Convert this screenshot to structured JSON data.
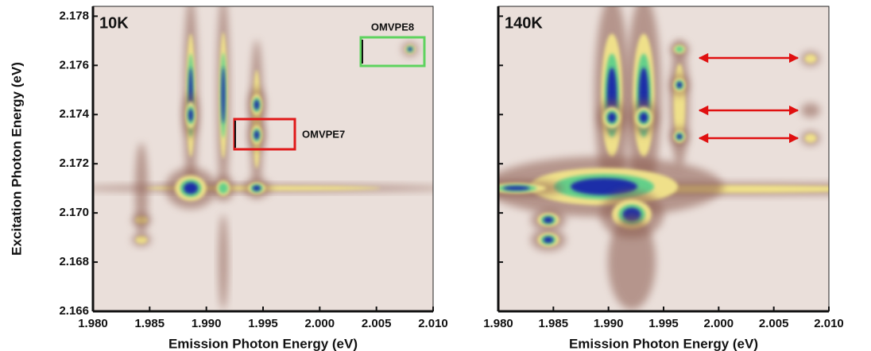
{
  "chart_data": [
    {
      "type": "heatmap",
      "label": "10K",
      "xlabel": "Emission Photon Energy (eV)",
      "ylabel": "Excitation Photon Energy (eV)",
      "xlim": [
        1.98,
        2.01
      ],
      "ylim": [
        2.166,
        2.1784
      ],
      "xticks": [
        {
          "value": 1.98,
          "label": "1.980"
        },
        {
          "value": 1.985,
          "label": "1.985"
        },
        {
          "value": 1.99,
          "label": "1.990"
        },
        {
          "value": 1.995,
          "label": "1.995"
        },
        {
          "value": 2.0,
          "label": "2.000"
        },
        {
          "value": 2.005,
          "label": "2.005"
        },
        {
          "value": 2.01,
          "label": "2.010"
        }
      ],
      "yticks": [
        {
          "value": 2.166,
          "label": "2.166"
        },
        {
          "value": 2.168,
          "label": "2.168"
        },
        {
          "value": 2.17,
          "label": "2.170"
        },
        {
          "value": 2.172,
          "label": "2.172"
        },
        {
          "value": 2.174,
          "label": "2.174"
        },
        {
          "value": 2.176,
          "label": "2.176"
        },
        {
          "value": 2.178,
          "label": "2.178"
        }
      ],
      "annotations": [
        "OMVPE8",
        "OMVPE7"
      ]
    },
    {
      "type": "heatmap",
      "label": "140K",
      "xlabel": "Emission Photon Energy (eV)",
      "xlim": [
        1.98,
        2.01
      ],
      "ylim": [
        2.166,
        2.1784
      ],
      "xticks": [
        {
          "value": 1.98,
          "label": "1.980"
        },
        {
          "value": 1.985,
          "label": "1.985"
        },
        {
          "value": 1.99,
          "label": "1.990"
        },
        {
          "value": 1.995,
          "label": "1.995"
        },
        {
          "value": 2.0,
          "label": "2.000"
        },
        {
          "value": 2.005,
          "label": "2.005"
        },
        {
          "value": 2.01,
          "label": "2.010"
        }
      ]
    }
  ]
}
